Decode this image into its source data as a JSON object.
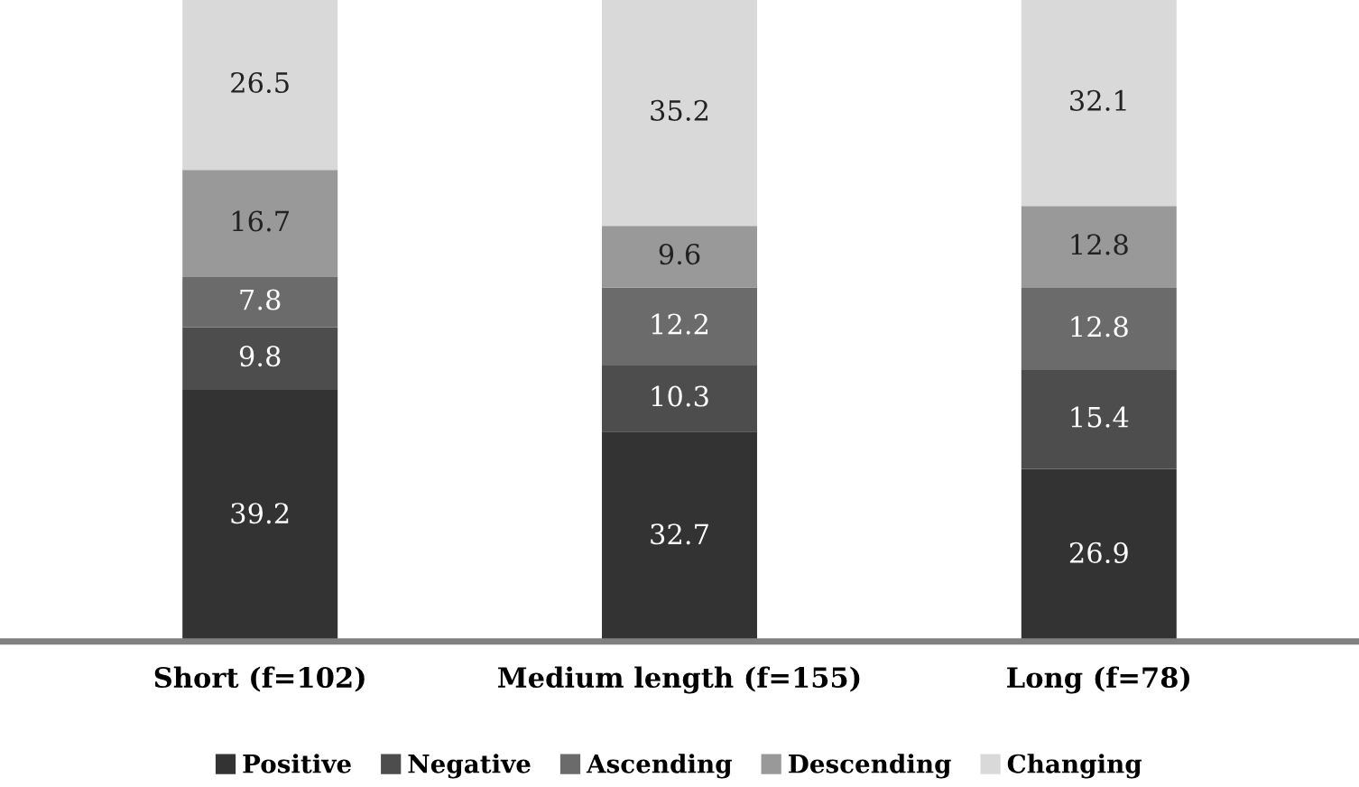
{
  "chart_data": {
    "type": "bar",
    "stacked": true,
    "data_labels": true,
    "legend": "bottom",
    "grid": false,
    "categories": [
      "Short (f=102)",
      "Medium length (f=155)",
      "Long (f=78)"
    ],
    "series": [
      {
        "name": "Positive",
        "color": "#333333",
        "values": [
          39.2,
          32.7,
          26.9
        ]
      },
      {
        "name": "Negative",
        "color": "#4d4d4d",
        "values": [
          9.8,
          10.3,
          15.4
        ]
      },
      {
        "name": "Ascending",
        "color": "#6b6b6b",
        "values": [
          7.8,
          12.2,
          12.8
        ]
      },
      {
        "name": "Descending",
        "color": "#999999",
        "values": [
          16.7,
          9.6,
          12.8
        ]
      },
      {
        "name": "Changing",
        "color": "#d9d9d9",
        "values": [
          26.5,
          35.2,
          32.1
        ]
      }
    ]
  }
}
